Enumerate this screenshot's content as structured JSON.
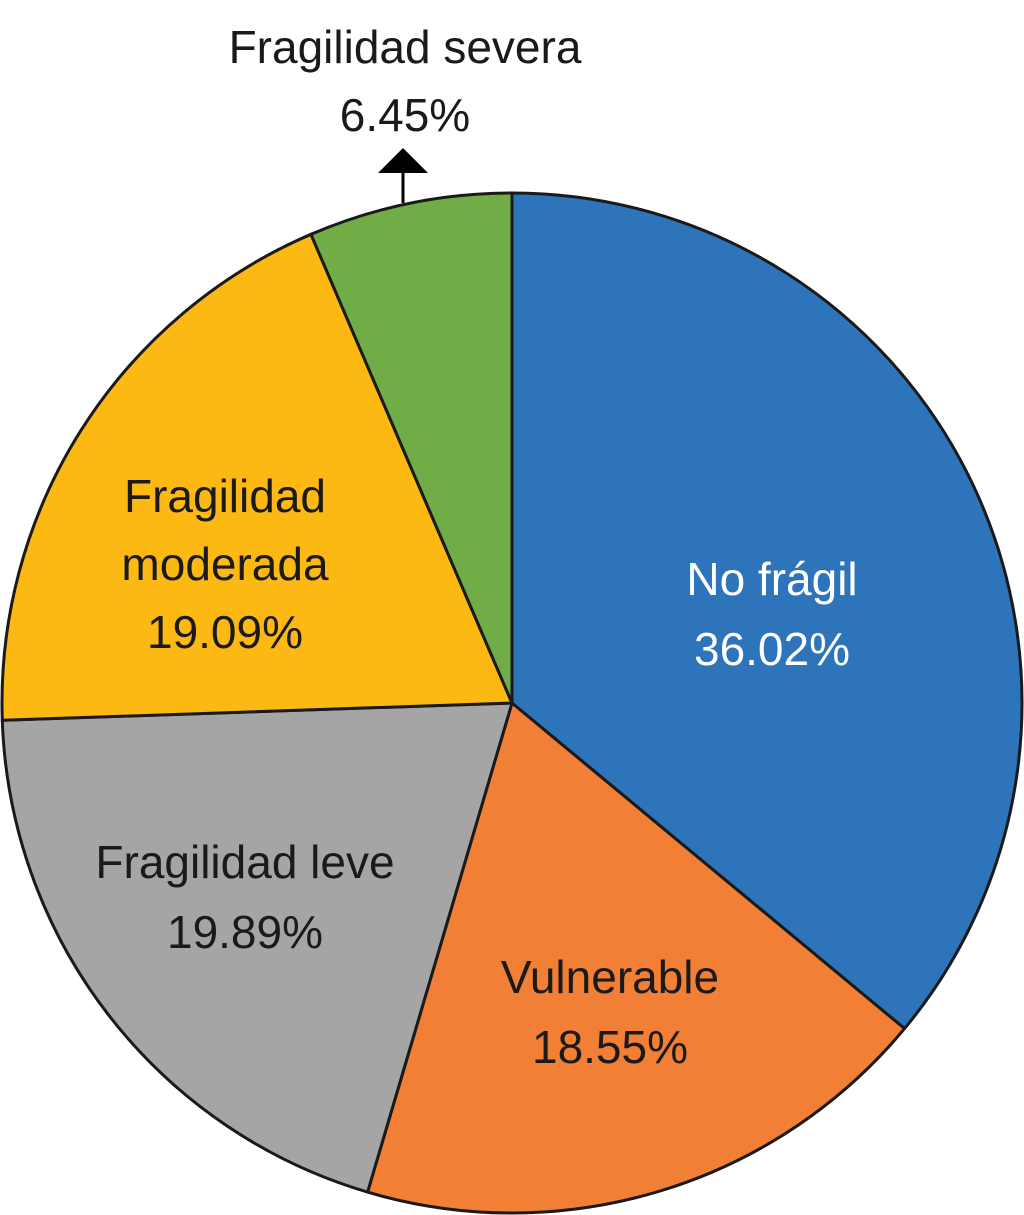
{
  "chart_data": {
    "type": "pie",
    "start_angle_deg": 0,
    "direction": "clockwise",
    "slices": [
      {
        "label": "No frágil",
        "value": 36.02,
        "value_label": "36.02%",
        "color": "#2E74BA",
        "text_color": "#FFFFFF"
      },
      {
        "label": "Vulnerable",
        "value": 18.55,
        "value_label": "18.55%",
        "color": "#F17F35",
        "text_color": "#1A1A1A"
      },
      {
        "label": "Fragilidad leve",
        "value": 19.89,
        "value_label": "19.89%",
        "color": "#A5A5A5",
        "text_color": "#1A1A1A"
      },
      {
        "label": "Fragilidad moderada",
        "value": 19.09,
        "value_label": "19.09%",
        "color": "#FDB913",
        "text_color": "#1A1A1A"
      },
      {
        "label": "Fragilidad severa",
        "value": 6.45,
        "value_label": "6.45%",
        "color": "#70AD47",
        "text_color": "#1A1A1A"
      }
    ]
  }
}
